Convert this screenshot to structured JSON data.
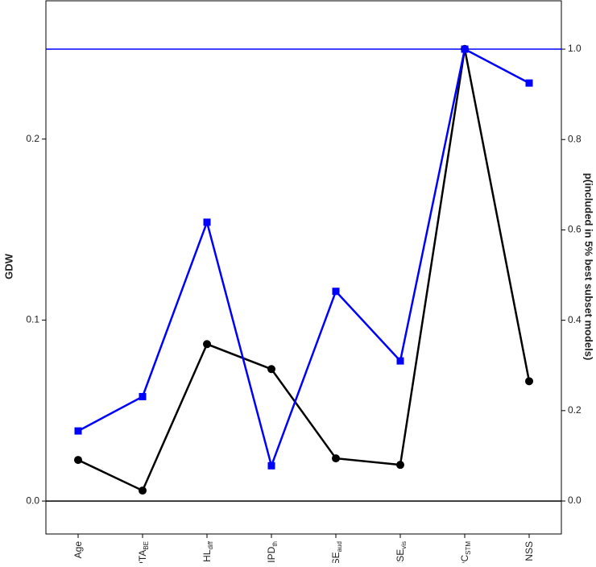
{
  "chart_data": {
    "type": "line",
    "categories": [
      "Age",
      "PTA",
      "HL",
      "IPD",
      "ISE",
      "ISE",
      "PC",
      "NSS"
    ],
    "category_subscripts": [
      null,
      "BE",
      "diff",
      "th",
      "aud",
      "vis",
      "STM",
      null
    ],
    "ylabel": "GDW",
    "y2label": "p(included in 5% best subset models)",
    "ylim": [
      -0.0182,
      0.2764
    ],
    "yticks": [
      {
        "value": 0,
        "label": "0.0"
      },
      0.1,
      0.2
    ],
    "y2lim": [
      -0.073,
      1.107
    ],
    "y2ticks": [
      {
        "value": 0,
        "label": "0.0"
      },
      0.2,
      0.4,
      0.6,
      0.8,
      {
        "value": 1,
        "label": "1.0"
      }
    ],
    "hlines": [
      {
        "value": 0,
        "axis": "y",
        "color": "#000000"
      },
      {
        "value": 1,
        "axis": "y2",
        "color": "#0000ff"
      }
    ],
    "series": [
      {
        "color": "#000000",
        "marker": "circle",
        "axis": "y",
        "values": [
          0.0227,
          0.0058,
          0.0867,
          0.0729,
          0.0236,
          0.02,
          0.2498,
          0.0662
        ]
      },
      {
        "color": "#0000ff",
        "marker": "square",
        "axis": "y2",
        "values": [
          0.155,
          0.231,
          0.617,
          0.078,
          0.464,
          0.31,
          1.0,
          0.925
        ]
      }
    ]
  }
}
